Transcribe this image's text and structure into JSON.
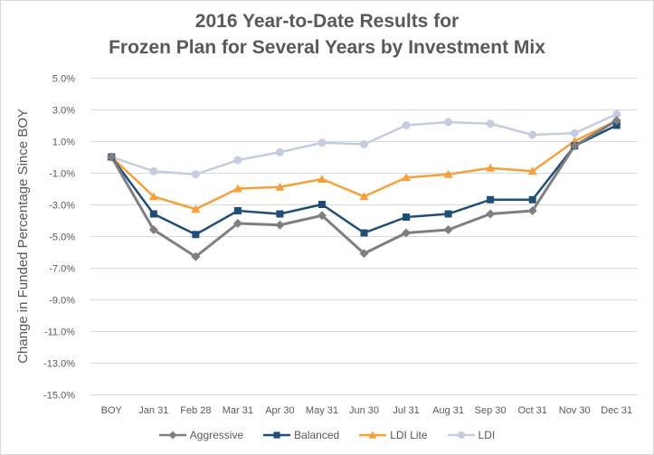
{
  "chart_data": {
    "type": "line",
    "title_line1": "2016 Year-to-Date Results for",
    "title_line2": "Frozen Plan for Several Years by Investment Mix",
    "xlabel": "",
    "ylabel": "Change in Funded Percentage Since BOY",
    "ylim": [
      -15.0,
      5.0
    ],
    "yticks": [
      5.0,
      3.0,
      1.0,
      -1.0,
      -3.0,
      -5.0,
      -7.0,
      -9.0,
      -11.0,
      -13.0,
      -15.0
    ],
    "ytick_labels": [
      "5.0%",
      "3.0%",
      "1.0%",
      "-1.0%",
      "-3.0%",
      "-5.0%",
      "-7.0%",
      "-9.0%",
      "-11.0%",
      "-13.0%",
      "-15.0%"
    ],
    "grid": "horizontal",
    "legend_position": "bottom",
    "categories": [
      "BOY",
      "Jan 31",
      "Feb 28",
      "Mar 31",
      "Apr 30",
      "May 31",
      "Jun 30",
      "Jul 31",
      "Aug 31",
      "Sep 30",
      "Oct 31",
      "Nov 30",
      "Dec 31"
    ],
    "series": [
      {
        "name": "Aggressive",
        "color": "#7f7f7f",
        "marker": "diamond",
        "values": [
          0.0,
          -4.6,
          -6.3,
          -4.2,
          -4.3,
          -3.7,
          -6.1,
          -4.8,
          -4.6,
          -3.6,
          -3.4,
          0.7,
          2.3
        ]
      },
      {
        "name": "Balanced",
        "color": "#1f4e79",
        "marker": "square",
        "values": [
          0.0,
          -3.6,
          -4.9,
          -3.4,
          -3.6,
          -3.0,
          -4.8,
          -3.8,
          -3.6,
          -2.7,
          -2.7,
          0.7,
          2.0
        ]
      },
      {
        "name": "LDI Lite",
        "color": "#f4a13c",
        "marker": "triangle",
        "values": [
          0.0,
          -2.5,
          -3.3,
          -2.0,
          -1.9,
          -1.4,
          -2.5,
          -1.3,
          -1.1,
          -0.7,
          -0.9,
          1.0,
          2.3
        ]
      },
      {
        "name": "LDI",
        "color": "#c4cde0",
        "marker": "circle",
        "values": [
          0.0,
          -0.9,
          -1.1,
          -0.2,
          0.3,
          0.9,
          0.8,
          2.0,
          2.2,
          2.1,
          1.4,
          1.5,
          2.7
        ]
      }
    ]
  }
}
